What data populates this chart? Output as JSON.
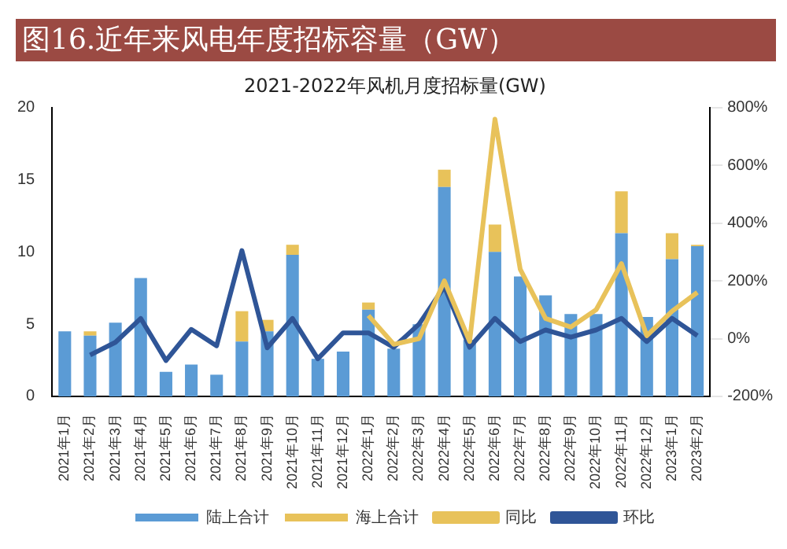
{
  "chart_data": {
    "type": "bar",
    "title": "图16.近年来风电年度招标容量（GW）",
    "subtitle": "2021-2022年风机月度招标量(GW)",
    "categories": [
      "2021年1月",
      "2021年2月",
      "2021年3月",
      "2021年4月",
      "2021年5月",
      "2021年6月",
      "2021年7月",
      "2021年8月",
      "2021年9月",
      "2021年10月",
      "2021年11月",
      "2021年12月",
      "2022年1月",
      "2022年2月",
      "2022年3月",
      "2022年4月",
      "2022年5月",
      "2022年6月",
      "2022年7月",
      "2022年8月",
      "2022年9月",
      "2022年10月",
      "2022年11月",
      "2022年12月",
      "2023年1月",
      "2023年2月"
    ],
    "stacked": true,
    "series": [
      {
        "name": "陆上合计",
        "color": "#5b9bd5",
        "values": [
          4.5,
          4.2,
          5.1,
          8.2,
          1.7,
          2.2,
          1.5,
          3.8,
          4.5,
          9.8,
          2.6,
          3.1,
          6.0,
          3.3,
          5.0,
          14.5,
          3.9,
          10.0,
          8.3,
          7.0,
          5.7,
          5.7,
          11.3,
          5.5,
          9.5,
          10.4
        ]
      },
      {
        "name": "海上合计",
        "color": "#e8c25a",
        "values": [
          0,
          0.3,
          0,
          0,
          0,
          0,
          0,
          2.1,
          0.8,
          0.7,
          0,
          0,
          0.5,
          0,
          0,
          1.2,
          0,
          1.9,
          0,
          0,
          0,
          0,
          2.9,
          0,
          1.8,
          0.1
        ]
      },
      {
        "name": "同比",
        "type": "line",
        "axis": "y2",
        "color": "#e8c25a",
        "values": [
          null,
          null,
          null,
          null,
          null,
          null,
          null,
          null,
          null,
          null,
          null,
          null,
          80,
          -20,
          0,
          200,
          -10,
          760,
          240,
          70,
          40,
          100,
          260,
          10,
          95,
          160
        ]
      },
      {
        "name": "环比",
        "type": "line",
        "axis": "y2",
        "color": "#2f5597",
        "values": [
          null,
          -57,
          -13,
          70,
          -76,
          32,
          -25,
          305,
          -32,
          70,
          -70,
          20,
          20,
          -30,
          50,
          180,
          -30,
          70,
          -10,
          30,
          5,
          30,
          70,
          -10,
          70,
          10
        ]
      }
    ],
    "ylim": [
      0,
      20
    ],
    "yticks": [
      0,
      5,
      10,
      15,
      20
    ],
    "y2lim": [
      -200,
      800
    ],
    "y2ticks": [
      {
        "value": -200,
        "label": "-200%"
      },
      {
        "value": 0,
        "label": "0%"
      },
      {
        "value": 200,
        "label": "200%"
      },
      {
        "value": 400,
        "label": "400%"
      },
      {
        "value": 600,
        "label": "600%"
      },
      {
        "value": 800,
        "label": "800%"
      }
    ],
    "grid": false,
    "legend": "bottom",
    "marker": "none",
    "line_style": "solid"
  }
}
